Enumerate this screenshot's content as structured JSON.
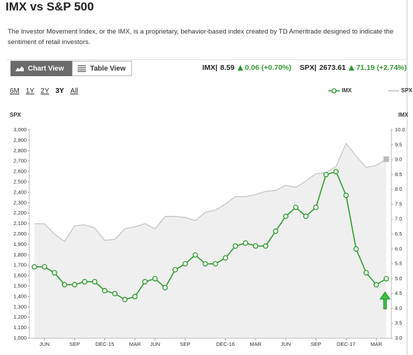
{
  "header": {
    "title": "IMX vs S&P 500",
    "description": "The Investor Movement Index, or the IMX, is a proprietary, behavior-based index created by TD Ameritrade designed to indicate the sentiment of retail investors."
  },
  "toolbar": {
    "buttons": [
      "Chart View",
      "Table View"
    ],
    "quotes": [
      {
        "label": "IMX|",
        "value": "8.59",
        "change": "0.06",
        "pct": "(+0.70%)"
      },
      {
        "label": "SPX|",
        "value": "2673.61",
        "change": "71.19",
        "pct": "(+2.74%)"
      }
    ]
  },
  "ranges": [
    "6M",
    "1Y",
    "2Y",
    "3Y",
    "All"
  ],
  "chart_data": {
    "type": "line",
    "ylabel": "SPX",
    "y2label": "IMX",
    "categories": [
      null,
      "JUN",
      null,
      null,
      "SEP",
      null,
      null,
      "DEC-15",
      null,
      null,
      "MAR",
      null,
      "JUN",
      null,
      null,
      "SEP",
      null,
      null,
      null,
      "DEC-16",
      null,
      null,
      "MAR",
      null,
      null,
      "JUN",
      null,
      null,
      "SEP",
      null,
      null,
      "DEC-17",
      null,
      null,
      "MAR",
      null
    ],
    "series": [
      {
        "name": "IMX",
        "color": "#2e9a2e",
        "axis": "y2",
        "values": [
          5.4,
          5.4,
          5.2,
          4.8,
          4.8,
          4.9,
          4.9,
          4.6,
          4.5,
          4.3,
          4.4,
          4.9,
          5.0,
          4.7,
          5.3,
          5.5,
          5.8,
          5.5,
          5.5,
          5.7,
          6.1,
          6.2,
          6.1,
          6.1,
          6.6,
          7.1,
          7.4,
          7.1,
          7.4,
          8.5,
          8.6,
          7.8,
          6.0,
          5.2,
          4.8,
          5.0
        ]
      },
      {
        "name": "SPX",
        "color": "#c4c4c4",
        "values": [
          2100,
          2100,
          2000,
          1930,
          2080,
          2090,
          2060,
          1940,
          1950,
          2050,
          2070,
          2100,
          2050,
          2170,
          2170,
          2160,
          2130,
          2210,
          2230,
          2290,
          2360,
          2360,
          2380,
          2410,
          2420,
          2470,
          2450,
          2510,
          2580,
          2590,
          2650,
          2870,
          2750,
          2640,
          2660,
          2720
        ]
      }
    ],
    "ylim": [
      1000,
      3000
    ],
    "yticks": [
      {
        "value": 1000,
        "label": "1,000"
      },
      {
        "value": 1100,
        "label": "1,100"
      },
      {
        "value": 1200,
        "label": "1,200"
      },
      {
        "value": 1300,
        "label": "1,300"
      },
      {
        "value": 1400,
        "label": "1,400"
      },
      {
        "value": 1500,
        "label": "1,500"
      },
      {
        "value": 1600,
        "label": "1,600"
      },
      {
        "value": 1700,
        "label": "1,700"
      },
      {
        "value": 1800,
        "label": "1,800"
      },
      {
        "value": 1900,
        "label": "1,900"
      },
      {
        "value": 2000,
        "label": "2,000"
      },
      {
        "value": 2100,
        "label": "2,100"
      },
      {
        "value": 2200,
        "label": "2,200"
      },
      {
        "value": 2300,
        "label": "2,300"
      },
      {
        "value": 2400,
        "label": "2,400"
      },
      {
        "value": 2500,
        "label": "2,500"
      },
      {
        "value": 2600,
        "label": "2,600"
      },
      {
        "value": 2700,
        "label": "2,700"
      },
      {
        "value": 2800,
        "label": "2,800"
      },
      {
        "value": 2900,
        "label": "2,900"
      },
      {
        "value": 3000,
        "label": "3,000"
      }
    ],
    "y2lim": [
      3,
      10
    ],
    "y2ticks": [
      {
        "value": 3,
        "label": "3.0"
      },
      3.5,
      {
        "value": 4,
        "label": "4.0"
      },
      4.5,
      {
        "value": 5,
        "label": "5.0"
      },
      5.5,
      {
        "value": 6,
        "label": "6.0"
      },
      6.5,
      {
        "value": 7,
        "label": "7.0"
      },
      7.5,
      {
        "value": 8,
        "label": "8.0"
      },
      8.5,
      {
        "value": 9,
        "label": "9.0"
      },
      9.5,
      {
        "value": 10,
        "label": "10.0"
      }
    ],
    "legend": "top-right",
    "grid": false
  }
}
